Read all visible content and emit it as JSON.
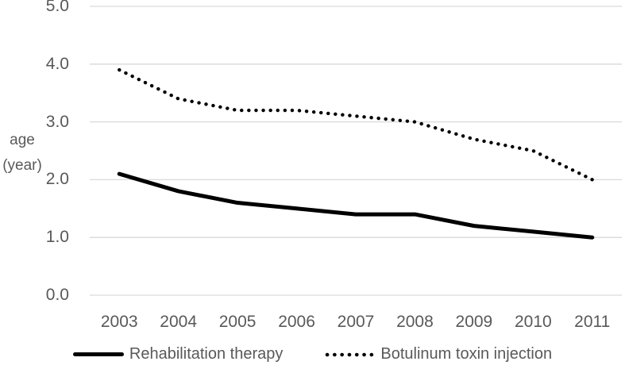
{
  "chart_data": {
    "type": "line",
    "categories": [
      "2003",
      "2004",
      "2005",
      "2006",
      "2007",
      "2008",
      "2009",
      "2010",
      "2011"
    ],
    "series": [
      {
        "name": "Rehabilitation therapy",
        "style": "solid",
        "color": "#000000",
        "values": [
          2.1,
          1.8,
          1.6,
          1.5,
          1.4,
          1.4,
          1.2,
          1.1,
          1.0
        ]
      },
      {
        "name": "Botulinum toxin injection",
        "style": "dotted",
        "color": "#000000",
        "values": [
          3.9,
          3.4,
          3.2,
          3.2,
          3.1,
          3.0,
          2.7,
          2.5,
          2.0
        ]
      }
    ],
    "title": "",
    "xlabel": "",
    "ylabel": "age (year)",
    "ylabel_line1": "age",
    "ylabel_line2": "(year)",
    "y_ticks": [
      "0.0",
      "1.0",
      "2.0",
      "3.0",
      "4.0",
      "5.0"
    ],
    "ylim": [
      0,
      5
    ],
    "grid": "horizontal",
    "legend_position": "bottom-center",
    "colors": {
      "series": "#000000",
      "gridline": "#D9D9D9",
      "text": "#595959",
      "background": "#FFFFFF"
    }
  }
}
